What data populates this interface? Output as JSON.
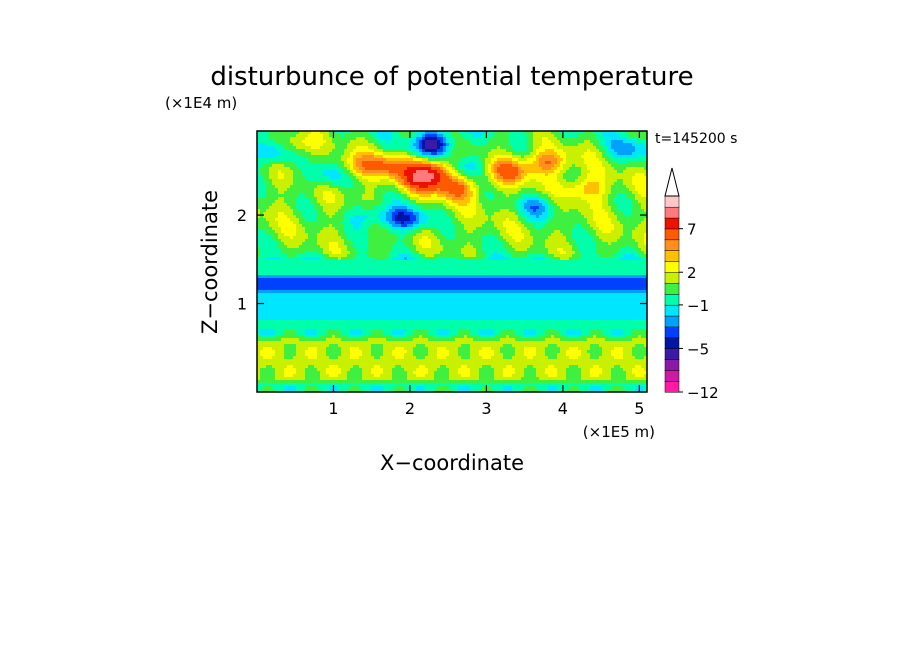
{
  "chart_data": {
    "type": "heatmap",
    "title": "disturbunce of potential temperature",
    "xlabel": "X−coordinate",
    "ylabel": "Z−coordinate",
    "x_unit": "(×1E5 m)",
    "y_unit": "(×1E4 m)",
    "time_label": "t=145200 s",
    "xlim": [
      0,
      5.1
    ],
    "ylim": [
      0,
      2.95
    ],
    "x_ticks": [
      1,
      2,
      3,
      4,
      5
    ],
    "x_tick_labels": [
      "1",
      "2",
      "3",
      "4",
      "5"
    ],
    "y_ticks": [
      1,
      2
    ],
    "y_tick_labels": [
      "1",
      "2"
    ],
    "colorbar": {
      "levels": [
        -12,
        -10,
        -8,
        -6,
        -5,
        -4,
        -3,
        -2,
        -1,
        0,
        1,
        2,
        3,
        4,
        5,
        7,
        9,
        11
      ],
      "labeled_levels": [
        -12,
        -5,
        -1,
        2,
        7
      ],
      "tick_labels": [
        "−12",
        "−5",
        "−1",
        "2",
        "7"
      ],
      "extend": "max",
      "colors": [
        "#ff1aa6",
        "#cc1aa6",
        "#8a1aa6",
        "#3a1aa6",
        "#0015a6",
        "#0040ff",
        "#00a0ff",
        "#00e6ff",
        "#00ffaa",
        "#40f040",
        "#c8f000",
        "#ffff00",
        "#ffc000",
        "#ff9020",
        "#ff5a00",
        "#ee1100",
        "#ff7a7a",
        "#ffc8c8"
      ]
    },
    "features": [
      {
        "x": 0.2,
        "z": 2.7,
        "value": -4
      },
      {
        "x": 0.9,
        "z": 2.45,
        "value": -3
      },
      {
        "x": 1.95,
        "z": 1.95,
        "value": -5
      },
      {
        "x": 1.5,
        "z": 2.0,
        "value": -3
      },
      {
        "x": 2.3,
        "z": 2.8,
        "value": -6
      },
      {
        "x": 2.7,
        "z": 2.55,
        "value": -3
      },
      {
        "x": 3.7,
        "z": 2.1,
        "value": -3
      },
      {
        "x": 4.9,
        "z": 2.75,
        "value": -3
      },
      {
        "x": 2.3,
        "z": 2.5,
        "value": 6
      },
      {
        "x": 2.15,
        "z": 2.4,
        "value": 5
      },
      {
        "x": 2.6,
        "z": 2.3,
        "value": 4
      },
      {
        "x": 1.75,
        "z": 2.55,
        "value": 4
      },
      {
        "x": 1.3,
        "z": 2.55,
        "value": 3
      },
      {
        "x": 3.3,
        "z": 2.5,
        "value": 4
      },
      {
        "x": 3.8,
        "z": 2.6,
        "value": 4
      },
      {
        "x": 4.3,
        "z": 2.3,
        "value": 3
      },
      {
        "x": 0.5,
        "z": 2.8,
        "value": 3
      }
    ],
    "bands": [
      {
        "z_from": 1.45,
        "z_to": 2.95,
        "value": 1
      },
      {
        "z_from": 1.35,
        "z_to": 1.55,
        "value": -0.5
      },
      {
        "z_from": 0.75,
        "z_to": 1.4,
        "value": -1.5
      },
      {
        "z_from": 1.12,
        "z_to": 1.32,
        "value": -4
      },
      {
        "z_from": 0.62,
        "z_to": 0.78,
        "value": -0.5
      },
      {
        "z_from": 0.05,
        "z_to": 0.65,
        "value": 1.5
      },
      {
        "z_from": 0.0,
        "z_to": 0.12,
        "value": -0.5
      }
    ]
  }
}
